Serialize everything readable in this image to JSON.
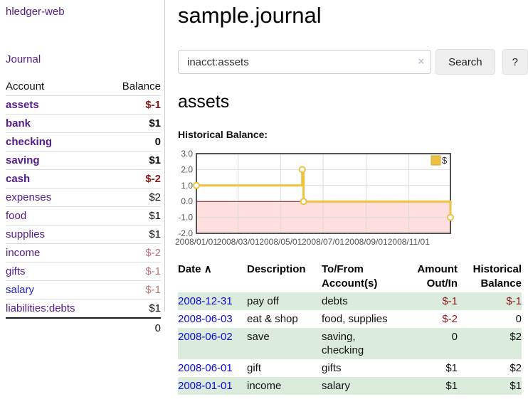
{
  "app": {
    "title": "hledger-web"
  },
  "sidebar": {
    "nav": {
      "journal_label": "Journal"
    },
    "accounts_table": {
      "headers": [
        "Account",
        "Balance"
      ],
      "rows": [
        {
          "account": "assets",
          "indent": 1,
          "bold": true,
          "balance": "$-1",
          "balance_style": "negative-strong"
        },
        {
          "account": "bank",
          "indent": 2,
          "bold": true,
          "balance": "$1",
          "balance_style": "normal"
        },
        {
          "account": "checking",
          "indent": 3,
          "bold": true,
          "balance": "0",
          "balance_style": "normal"
        },
        {
          "account": "saving",
          "indent": 3,
          "bold": true,
          "balance": "$1",
          "balance_style": "normal"
        },
        {
          "account": "cash",
          "indent": 2,
          "bold": true,
          "balance": "$-2",
          "balance_style": "negative-strong"
        },
        {
          "account": "expenses",
          "indent": 1,
          "bold": false,
          "balance": "$2",
          "balance_style": "normal"
        },
        {
          "account": "food",
          "indent": 2,
          "bold": false,
          "balance": "$1",
          "balance_style": "normal"
        },
        {
          "account": "supplies",
          "indent": 2,
          "bold": false,
          "balance": "$1",
          "balance_style": "normal"
        },
        {
          "account": "income",
          "indent": 1,
          "bold": false,
          "balance": "$-2",
          "balance_style": "negative-muted"
        },
        {
          "account": "gifts",
          "indent": 2,
          "bold": false,
          "balance": "$-1",
          "balance_style": "negative-muted"
        },
        {
          "account": "salary",
          "indent": 2,
          "bold": false,
          "link_style": "blue",
          "balance": "$-1",
          "balance_style": "negative-muted"
        },
        {
          "account": "liabilities:debts",
          "indent": 1,
          "bold": false,
          "balance": "$1",
          "balance_style": "normal"
        }
      ],
      "total": "0"
    }
  },
  "header": {
    "journal_title": "sample.journal"
  },
  "search": {
    "value": "inacct:assets",
    "clear_icon": "×",
    "button_label": "Search",
    "help_label": "?"
  },
  "account_page": {
    "title": "assets",
    "chart_label": "Historical Balance:"
  },
  "chart_data": {
    "type": "line",
    "step": true,
    "title": "Historical Balance",
    "series": [
      {
        "name": "$",
        "color": "#edc240",
        "points": [
          [
            "2008-01-01",
            1
          ],
          [
            "2008-06-01",
            2
          ],
          [
            "2008-06-03",
            0
          ],
          [
            "2008-12-31",
            -1
          ]
        ]
      }
    ],
    "x_range": [
      "2008-01-01",
      "2008-12-31"
    ],
    "ylim": [
      -2,
      3
    ],
    "yticks": [
      "3.0",
      "2.0",
      "1.0",
      "0.0",
      "-1.0",
      "-2.0"
    ],
    "xticks": [
      {
        "label": "2008/01/01",
        "date": "2008-01-01"
      },
      {
        "label": "2008/03/01",
        "date": "2008-03-01"
      },
      {
        "label": "2008/05/01",
        "date": "2008-05-01"
      },
      {
        "label": "2008/07/01",
        "date": "2008-07-01"
      },
      {
        "label": "2008/09/01",
        "date": "2008-09-01"
      },
      {
        "label": "2008/11/01",
        "date": "2008-11-01"
      }
    ],
    "grid": true,
    "legend_position": "top-right",
    "negative_fill": "#ffdede",
    "zero_line_color": "#8b1a1a",
    "grid_color": "#dcdcdc",
    "border_color": "#545454",
    "tick_label_color": "#545454"
  },
  "register": {
    "headers": [
      {
        "label": "Date",
        "sort_icon": "∧",
        "align": "left"
      },
      {
        "label": "Description",
        "align": "left"
      },
      {
        "label": "To/From Account(s)",
        "align": "left"
      },
      {
        "label": "Amount Out/In",
        "align": "right"
      },
      {
        "label": "Historical Balance",
        "align": "right"
      }
    ],
    "rows": [
      {
        "date": "2008-12-31",
        "description": "pay off",
        "accounts": "debts",
        "amount": "$-1",
        "amount_negative": true,
        "balance": "$-1",
        "balance_negative": true,
        "shaded": true
      },
      {
        "date": "2008-06-03",
        "description": "eat & shop",
        "accounts": "food, supplies",
        "amount": "$-2",
        "amount_negative": true,
        "balance": "0",
        "balance_negative": false,
        "shaded": false
      },
      {
        "date": "2008-06-02",
        "description": "save",
        "accounts": "saving, checking",
        "amount": "0",
        "amount_negative": false,
        "balance": "$2",
        "balance_negative": false,
        "shaded": true
      },
      {
        "date": "2008-06-01",
        "description": "gift",
        "accounts": "gifts",
        "amount": "$1",
        "amount_negative": false,
        "balance": "$2",
        "balance_negative": false,
        "shaded": false
      },
      {
        "date": "2008-01-01",
        "description": "income",
        "accounts": "salary",
        "amount": "$1",
        "amount_negative": false,
        "balance": "$1",
        "balance_negative": false,
        "shaded": true
      }
    ]
  },
  "colors": {
    "link_purple": "#551a8b",
    "link_blue": "#2323d0",
    "date_link_blue": "#0b0bd8",
    "negative_strong": "#8b1717",
    "negative_muted": "#bb7575",
    "row_stripe_green": "#dcecdc",
    "chart_series_gold": "#edc240",
    "chart_negative_fill": "#ffdede",
    "chart_zero_line": "#8b1a1a",
    "divider_gray": "#cccccc"
  }
}
